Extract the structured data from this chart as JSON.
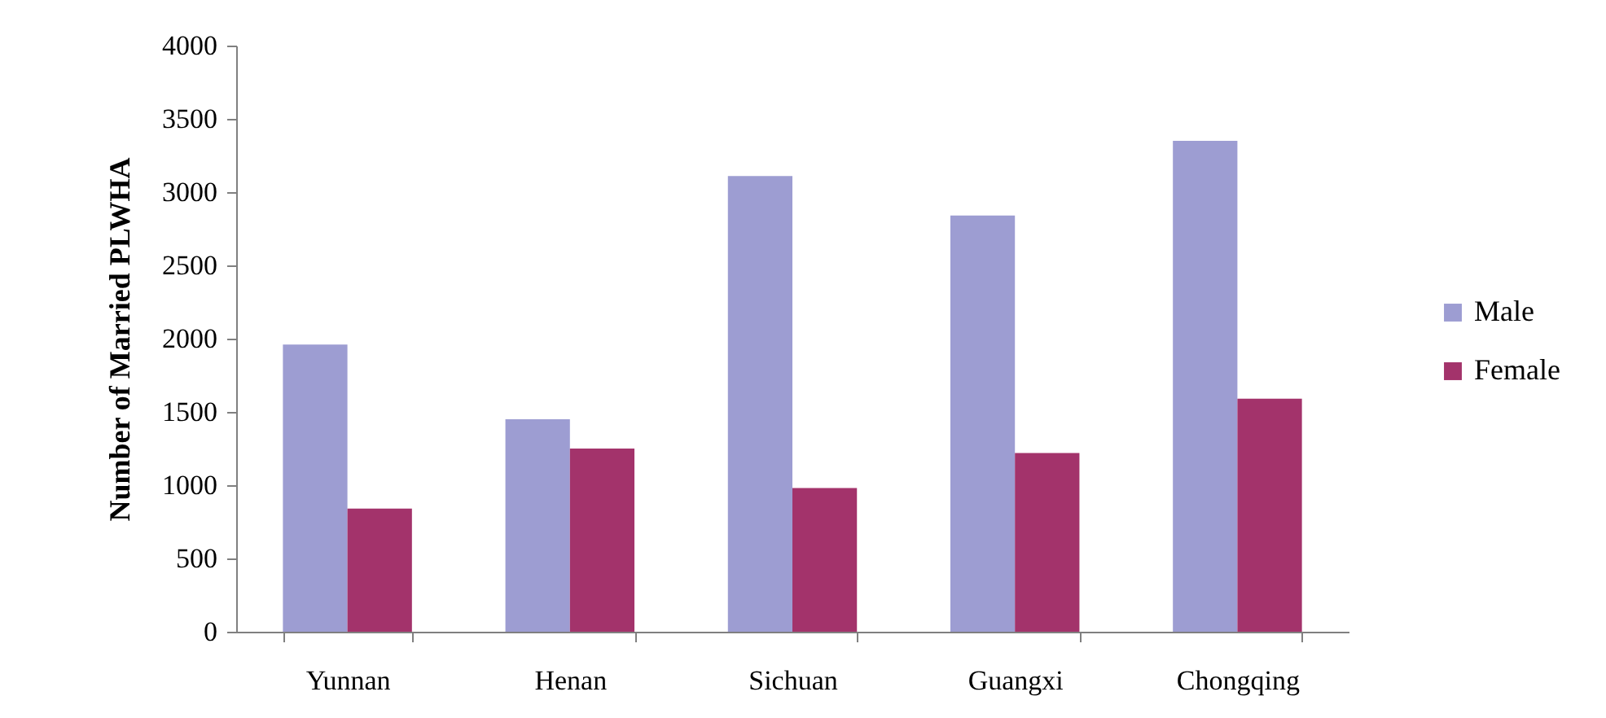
{
  "chart_data": {
    "type": "bar",
    "ylabel": "Number of Married PLWHA",
    "categories": [
      "Yunnan",
      "Henan",
      "Sichuan",
      "Guangxi",
      "Chongqing"
    ],
    "series": [
      {
        "name": "Male",
        "color": "#9d9dd2",
        "values": [
          1960,
          1450,
          3110,
          2840,
          3350
        ]
      },
      {
        "name": "Female",
        "color": "#a3336b",
        "values": [
          840,
          1250,
          980,
          1220,
          1590
        ]
      }
    ],
    "ylim": [
      0,
      4000
    ],
    "yticks": [
      0,
      500,
      1000,
      1500,
      2000,
      2500,
      3000,
      3500,
      4000
    ],
    "legend": "right"
  }
}
